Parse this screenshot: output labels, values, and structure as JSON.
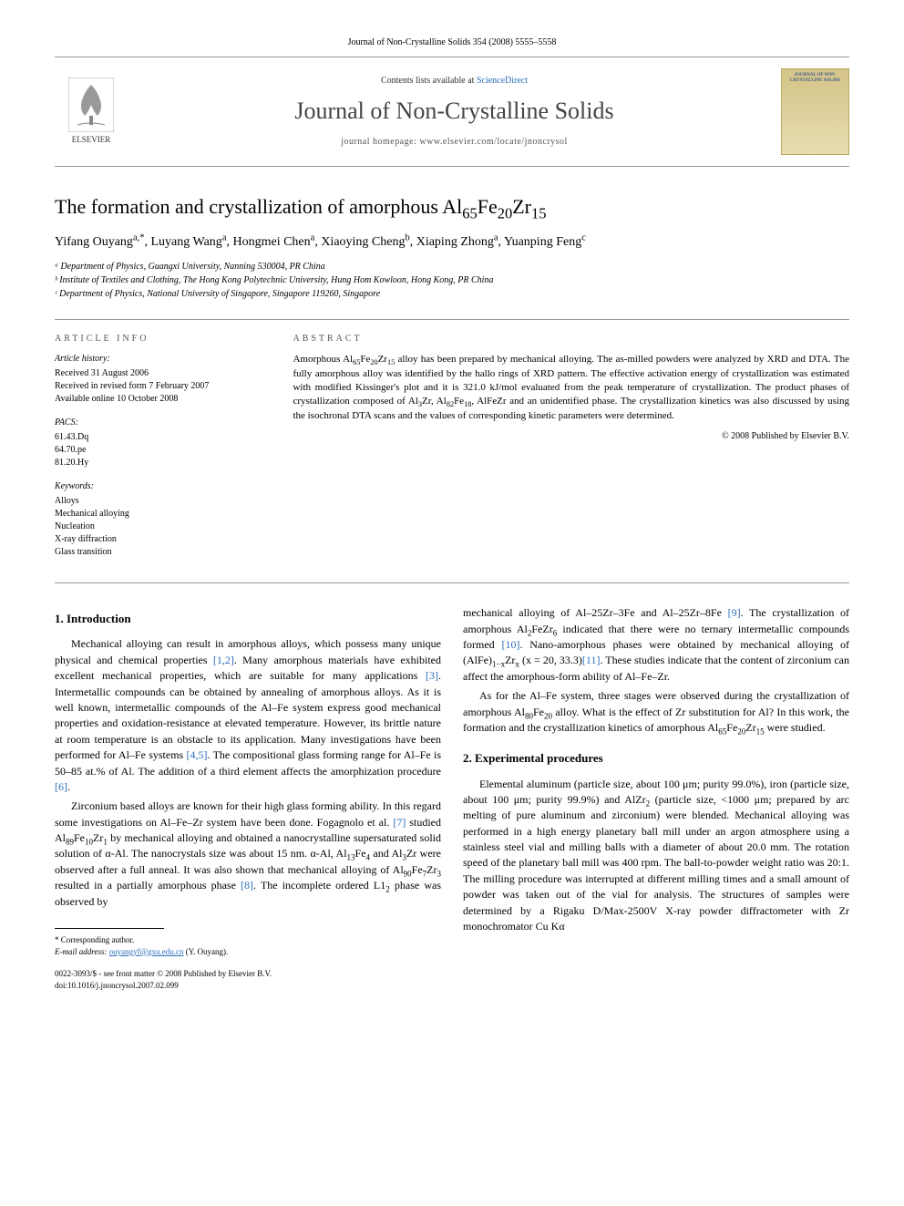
{
  "journal_ref": "Journal of Non-Crystalline Solids 354 (2008) 5555–5558",
  "masthead": {
    "contents_prefix": "Contents lists available at ",
    "contents_link": "ScienceDirect",
    "journal_name": "Journal of Non-Crystalline Solids",
    "homepage_prefix": "journal homepage: ",
    "homepage_url": "www.elsevier.com/locate/jnoncrysol",
    "publisher": "ELSEVIER",
    "cover_title": "JOURNAL OF NON-CRYSTALLINE SOLIDS"
  },
  "article": {
    "title_html": "The formation and crystallization of amorphous Al<sub>65</sub>Fe<sub>20</sub>Zr<sub>15</sub>",
    "authors_html": "Yifang Ouyang<sup>a,*</sup>, Luyang Wang<sup>a</sup>, Hongmei Chen<sup>a</sup>, Xiaoying Cheng<sup>b</sup>, Xiaping Zhong<sup>a</sup>, Yuanping Feng<sup>c</sup>",
    "affiliations": [
      "ᵃ Department of Physics, Guangxi University, Nanning 530004, PR China",
      "ᵇ Institute of Textiles and Clothing, The Hong Kong Polytechnic University, Hung Hom Kowloon, Hong Kong, PR China",
      "ᶜ Department of Physics, National University of Singapore, Singapore 119260, Singapore"
    ]
  },
  "info": {
    "label": "ARTICLE INFO",
    "history_head": "Article history:",
    "history": [
      "Received 31 August 2006",
      "Received in revised form 7 February 2007",
      "Available online 10 October 2008"
    ],
    "pacs_head": "PACS:",
    "pacs": [
      "61.43.Dq",
      "64.70.pe",
      "81.20.Hy"
    ],
    "keywords_head": "Keywords:",
    "keywords": [
      "Alloys",
      "Mechanical alloying",
      "Nucleation",
      "X-ray diffraction",
      "Glass transition"
    ]
  },
  "abstract": {
    "label": "ABSTRACT",
    "text_html": "Amorphous Al<sub>65</sub>Fe<sub>20</sub>Zr<sub>15</sub> alloy has been prepared by mechanical alloying. The as-milled powders were analyzed by XRD and DTA. The fully amorphous alloy was identified by the hallo rings of XRD pattern. The effective activation energy of crystallization was estimated with modified Kissinger's plot and it is 321.0 kJ/mol evaluated from the peak temperature of crystallization. The product phases of crystallization composed of Al<sub>3</sub>Zr, Al<sub>82</sub>Fe<sub>18</sub>, AlFeZr and an unidentified phase. The crystallization kinetics was also discussed by using the isochronal DTA scans and the values of corresponding kinetic parameters were determined.",
    "copyright": "© 2008 Published by Elsevier B.V."
  },
  "body": {
    "intro_head": "1. Introduction",
    "intro_p1_html": "Mechanical alloying can result in amorphous alloys, which possess many unique physical and chemical properties <span class='ref-link'>[1,2]</span>. Many amorphous materials have exhibited excellent mechanical properties, which are suitable for many applications <span class='ref-link'>[3]</span>. Intermetallic compounds can be obtained by annealing of amorphous alloys. As it is well known, intermetallic compounds of the Al–Fe system express good mechanical properties and oxidation-resistance at elevated temperature. However, its brittle nature at room temperature is an obstacle to its application. Many investigations have been performed for Al–Fe systems <span class='ref-link'>[4,5]</span>. The compositional glass forming range for Al–Fe is 50–85 at.% of Al. The addition of a third element affects the amorphization procedure <span class='ref-link'>[6]</span>.",
    "intro_p2_html": "Zirconium based alloys are known for their high glass forming ability. In this regard some investigations on Al–Fe–Zr system have been done. Fogagnolo et al. <span class='ref-link'>[7]</span> studied Al<sub>89</sub>Fe<sub>10</sub>Zr<sub>1</sub> by mechanical alloying and obtained a nanocrystalline supersaturated solid solution of α-Al. The nanocrystals size was about 15 nm. α-Al, Al<sub>13</sub>Fe<sub>4</sub> and Al<sub>3</sub>Zr were observed after a full anneal. It was also shown that mechanical alloying of Al<sub>90</sub>Fe<sub>7</sub>Zr<sub>3</sub> resulted in a partially amorphous phase <span class='ref-link'>[8]</span>. The incomplete ordered L1<sub>2</sub> phase was observed by",
    "intro_p3_html": "mechanical alloying of Al–25Zr–3Fe and Al–25Zr–8Fe <span class='ref-link'>[9]</span>. The crystallization of amorphous Al<sub>2</sub>FeZr<sub>6</sub> indicated that there were no ternary intermetallic compounds formed <span class='ref-link'>[10]</span>. Nano-amorphous phases were obtained by mechanical alloying of (AlFe)<sub>1−x</sub>Zr<sub>x</sub> (x = 20, 33.3)<span class='ref-link'>[11]</span>. These studies indicate that the content of zirconium can affect the amorphous-form ability of Al–Fe–Zr.",
    "intro_p4_html": "As for the Al–Fe system, three stages were observed during the crystallization of amorphous Al<sub>80</sub>Fe<sub>20</sub> alloy. What is the effect of Zr substitution for Al? In this work, the formation and the crystallization kinetics of amorphous Al<sub>65</sub>Fe<sub>20</sub>Zr<sub>15</sub> were studied.",
    "exp_head": "2. Experimental procedures",
    "exp_p1_html": "Elemental aluminum (particle size, about 100 μm; purity 99.0%), iron (particle size, about 100 μm; purity 99.9%) and AlZr<sub>2</sub> (particle size, <1000 μm; prepared by arc melting of pure aluminum and zirconium) were blended. Mechanical alloying was performed in a high energy planetary ball mill under an argon atmosphere using a stainless steel vial and milling balls with a diameter of about 20.0 mm. The rotation speed of the planetary ball mill was 400 rpm. The ball-to-powder weight ratio was 20:1. The milling procedure was interrupted at different milling times and a small amount of powder was taken out of the vial for analysis. The structures of samples were determined by a Rigaku D/Max-2500V X-ray powder diffractometer with Zr monochromator Cu Kα"
  },
  "footer": {
    "corresponding": "* Corresponding author.",
    "email_label": "E-mail address: ",
    "email": "ouyangyf@gxu.edu.cn",
    "email_suffix": " (Y. Ouyang).",
    "issn_line": "0022-3093/$ - see front matter © 2008 Published by Elsevier B.V.",
    "doi": "doi:10.1016/j.jnoncrysol.2007.02.099"
  },
  "style": {
    "link_color": "#2a6ebb",
    "text_color": "#000000",
    "border_color": "#999999",
    "cover_bg_top": "#d4c488",
    "cover_bg_bottom": "#e8dcb0"
  }
}
